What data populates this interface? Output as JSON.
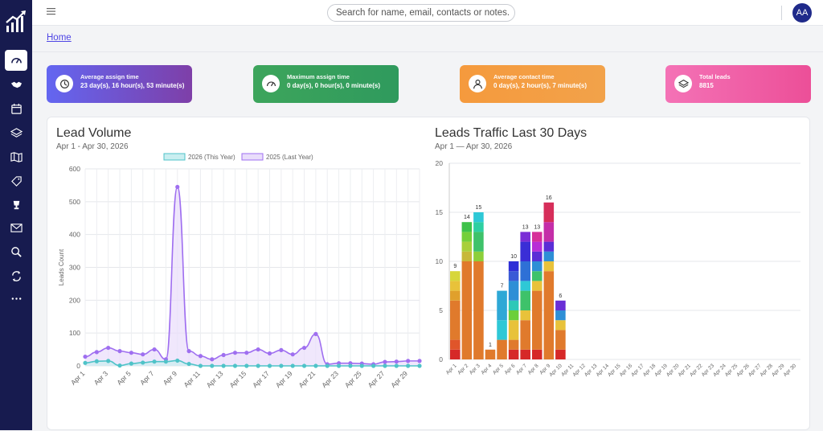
{
  "app": {
    "avatar_initials": "AA",
    "hamburger_icon": "menu-icon"
  },
  "search": {
    "placeholder": "Search for name, email, contacts or notes."
  },
  "breadcrumb": {
    "home": "Home"
  },
  "sidebar": {
    "items": [
      {
        "icon": "gauge-icon",
        "active": true
      },
      {
        "icon": "handshake-icon"
      },
      {
        "icon": "calendar-icon"
      },
      {
        "icon": "layers-icon"
      },
      {
        "icon": "map-icon"
      },
      {
        "icon": "tag-icon"
      },
      {
        "icon": "trophy-icon"
      },
      {
        "icon": "mail-icon"
      },
      {
        "icon": "search-icon"
      },
      {
        "icon": "refresh-icon"
      },
      {
        "icon": "more-icon"
      }
    ]
  },
  "cards": [
    {
      "label": "Average assign time",
      "value": "23 day(s), 16 hour(s), 53 minute(s)",
      "icon": "clock-icon",
      "colors": [
        "#6366f1",
        "#7e3fa8"
      ]
    },
    {
      "label": "Maximum assign time",
      "value": "0 day(s), 0 hour(s), 0 minute(s)",
      "icon": "speedometer-icon",
      "colors": [
        "#3da55c",
        "#2f9a5d"
      ]
    },
    {
      "label": "Average contact time",
      "value": "0 day(s), 2 hour(s), 7 minute(s)",
      "icon": "user-icon",
      "colors": [
        "#f59a3d",
        "#f2a24a"
      ]
    },
    {
      "label": "Total leads",
      "value": "8815",
      "icon": "layers-icon",
      "colors": [
        "#f472b6",
        "#ec4f98"
      ]
    }
  ],
  "lead_volume": {
    "title": "Lead Volume",
    "subtitle": "Apr 1 - Apr 30, 2026"
  },
  "leads_traffic": {
    "title": "Leads Traffic Last 30 Days",
    "subtitle": "Apr 1 — Apr 30, 2026"
  },
  "chart_data": [
    {
      "type": "line",
      "title": "Lead Volume",
      "ylabel": "Leads Count",
      "ylim": [
        0,
        600
      ],
      "yticks": [
        0,
        100,
        200,
        300,
        400,
        500,
        600
      ],
      "x": [
        "Apr 1",
        "Apr 2",
        "Apr 3",
        "Apr 4",
        "Apr 5",
        "Apr 6",
        "Apr 7",
        "Apr 8",
        "Apr 9",
        "Apr 10",
        "Apr 11",
        "Apr 12",
        "Apr 13",
        "Apr 14",
        "Apr 15",
        "Apr 16",
        "Apr 17",
        "Apr 18",
        "Apr 19",
        "Apr 20",
        "Apr 21",
        "Apr 22",
        "Apr 23",
        "Apr 24",
        "Apr 25",
        "Apr 26",
        "Apr 27",
        "Apr 28",
        "Apr 29",
        "Apr 30"
      ],
      "xticks_shown": [
        "Apr 1",
        "Apr 3",
        "Apr 5",
        "Apr 7",
        "Apr 9",
        "Apr 11",
        "Apr 13",
        "Apr 15",
        "Apr 17",
        "Apr 19",
        "Apr 21",
        "Apr 23",
        "Apr 25",
        "Apr 27",
        "Apr 29"
      ],
      "legend_position": "top",
      "grid": true,
      "series": [
        {
          "name": "2026 (This Year)",
          "color": "#4fc3c8",
          "fill": "#c9eef0",
          "values": [
            9,
            14,
            15,
            1,
            7,
            10,
            13,
            13,
            16,
            6,
            0,
            0,
            0,
            0,
            0,
            0,
            0,
            0,
            0,
            0,
            0,
            0,
            0,
            0,
            0,
            0,
            0,
            0,
            0,
            0
          ]
        },
        {
          "name": "2025 (Last Year)",
          "color": "#9f6ff0",
          "fill": "#e9ddfb",
          "values": [
            28,
            42,
            55,
            45,
            40,
            35,
            50,
            20,
            545,
            45,
            30,
            20,
            33,
            40,
            40,
            50,
            38,
            48,
            35,
            55,
            97,
            5,
            8,
            8,
            7,
            5,
            12,
            13,
            15,
            15
          ]
        }
      ]
    },
    {
      "type": "bar",
      "stacked": true,
      "title": "Leads Traffic Last 30 Days",
      "ylim": [
        0,
        20
      ],
      "yticks": [
        0,
        5,
        10,
        15,
        20
      ],
      "grid": true,
      "categories": [
        "Apr 1",
        "Apr 2",
        "Apr 3",
        "Apr 4",
        "Apr 5",
        "Apr 6",
        "Apr 7",
        "Apr 8",
        "Apr 9",
        "Apr 10",
        "Apr 11",
        "Apr 12",
        "Apr 13",
        "Apr 14",
        "Apr 15",
        "Apr 16",
        "Apr 17",
        "Apr 18",
        "Apr 19",
        "Apr 20",
        "Apr 21",
        "Apr 22",
        "Apr 23",
        "Apr 24",
        "Apr 25",
        "Apr 26",
        "Apr 27",
        "Apr 28",
        "Apr 29",
        "Apr 30"
      ],
      "totals": [
        9,
        14,
        15,
        1,
        7,
        10,
        13,
        13,
        16,
        6,
        0,
        0,
        0,
        0,
        0,
        0,
        0,
        0,
        0,
        0,
        0,
        0,
        0,
        0,
        0,
        0,
        0,
        0,
        0,
        0
      ],
      "stacks": [
        [
          {
            "v": 1,
            "c": "#d62828"
          },
          {
            "v": 1,
            "c": "#e0552a"
          },
          {
            "v": 4,
            "c": "#e07a2c"
          },
          {
            "v": 1,
            "c": "#e0a02c"
          },
          {
            "v": 1,
            "c": "#e8c23a"
          },
          {
            "v": 1,
            "c": "#d7d63a"
          }
        ],
        [
          {
            "v": 10,
            "c": "#e07a2c"
          },
          {
            "v": 1,
            "c": "#c7b83a"
          },
          {
            "v": 1,
            "c": "#a8cf3a"
          },
          {
            "v": 1,
            "c": "#74cf3a"
          },
          {
            "v": 1,
            "c": "#3ec24a"
          }
        ],
        [
          {
            "v": 10,
            "c": "#e07a2c"
          },
          {
            "v": 1,
            "c": "#8ccf3a"
          },
          {
            "v": 2,
            "c": "#3ec26a"
          },
          {
            "v": 1,
            "c": "#2ecfa2"
          },
          {
            "v": 1,
            "c": "#2ec8d6"
          }
        ],
        [
          {
            "v": 1,
            "c": "#e07a2c"
          }
        ],
        [
          {
            "v": 2,
            "c": "#e07a2c"
          },
          {
            "v": 2,
            "c": "#2ec8d6"
          },
          {
            "v": 3,
            "c": "#2ea8d6"
          }
        ],
        [
          {
            "v": 1,
            "c": "#d62828"
          },
          {
            "v": 1,
            "c": "#e07a2c"
          },
          {
            "v": 2,
            "c": "#e8c23a"
          },
          {
            "v": 1,
            "c": "#6ccf3a"
          },
          {
            "v": 1,
            "c": "#2ec8b8"
          },
          {
            "v": 2,
            "c": "#2e8fd6"
          },
          {
            "v": 1,
            "c": "#3a5ad6"
          },
          {
            "v": 1,
            "c": "#2e2ed6"
          }
        ],
        [
          {
            "v": 1,
            "c": "#d62828"
          },
          {
            "v": 3,
            "c": "#e07a2c"
          },
          {
            "v": 1,
            "c": "#e8c23a"
          },
          {
            "v": 2,
            "c": "#3ec26a"
          },
          {
            "v": 1,
            "c": "#2ec8d6"
          },
          {
            "v": 2,
            "c": "#2e70d6"
          },
          {
            "v": 2,
            "c": "#3a2ed6"
          },
          {
            "v": 1,
            "c": "#7a2ed6"
          }
        ],
        [
          {
            "v": 1,
            "c": "#d62828"
          },
          {
            "v": 6,
            "c": "#e07a2c"
          },
          {
            "v": 1,
            "c": "#e8c23a"
          },
          {
            "v": 1,
            "c": "#3ec26a"
          },
          {
            "v": 1,
            "c": "#2e8fd6"
          },
          {
            "v": 1,
            "c": "#5a2ed6"
          },
          {
            "v": 1,
            "c": "#b82ed6"
          },
          {
            "v": 1,
            "c": "#d62e9a"
          }
        ],
        [
          {
            "v": 9,
            "c": "#e07a2c"
          },
          {
            "v": 1,
            "c": "#e8c23a"
          },
          {
            "v": 1,
            "c": "#2e8fd6"
          },
          {
            "v": 1,
            "c": "#5a2ed6"
          },
          {
            "v": 2,
            "c": "#c42ea8"
          },
          {
            "v": 2,
            "c": "#d62e5a"
          }
        ],
        [
          {
            "v": 1,
            "c": "#d62828"
          },
          {
            "v": 2,
            "c": "#e07a2c"
          },
          {
            "v": 1,
            "c": "#e8c23a"
          },
          {
            "v": 1,
            "c": "#2e8fd6"
          },
          {
            "v": 1,
            "c": "#6a2ed6"
          }
        ],
        [],
        [],
        [],
        [],
        [],
        [],
        [],
        [],
        [],
        [],
        [],
        [],
        [],
        [],
        [],
        [],
        [],
        [],
        [],
        []
      ]
    }
  ]
}
